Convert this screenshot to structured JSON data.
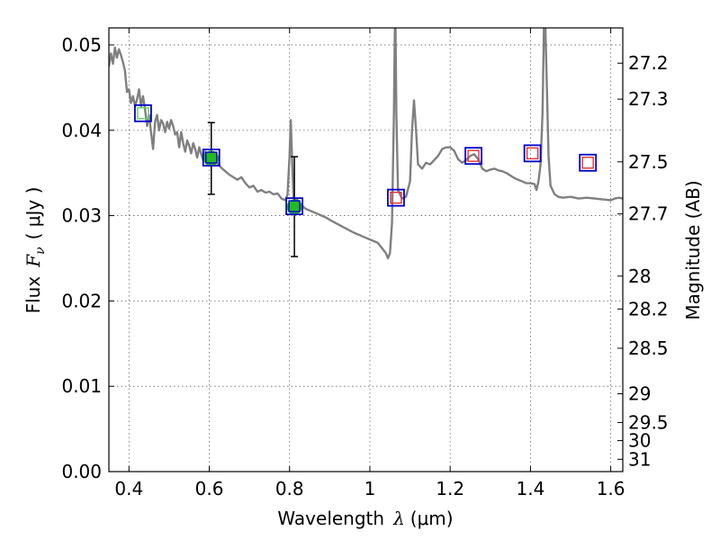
{
  "chart_data": {
    "type": "line",
    "xlabel_text": "Wavelength",
    "xlabel_symbol": "λ",
    "xlabel_unit": "(μm)",
    "ylabel_text": "Flux",
    "ylabel_symbol": "F",
    "ylabel_sub": "ν",
    "ylabel_unit": "( μJy )",
    "y2label": "Magnitude (AB)",
    "xlim": [
      0.35,
      1.63
    ],
    "ylim": [
      0.0,
      0.052
    ],
    "grid": true,
    "x_ticks": [
      {
        "value": 0.4,
        "label": "0.4"
      },
      {
        "value": 0.6,
        "label": "0.6"
      },
      {
        "value": 0.8,
        "label": "0.8"
      },
      {
        "value": 1.0,
        "label": "1"
      },
      {
        "value": 1.2,
        "label": "1.2"
      },
      {
        "value": 1.4,
        "label": "1.4"
      },
      {
        "value": 1.6,
        "label": "1.6"
      }
    ],
    "y_ticks": [
      {
        "value": 0.0,
        "label": "0.00"
      },
      {
        "value": 0.01,
        "label": "0.01"
      },
      {
        "value": 0.02,
        "label": "0.02"
      },
      {
        "value": 0.03,
        "label": "0.03"
      },
      {
        "value": 0.04,
        "label": "0.04"
      },
      {
        "value": 0.05,
        "label": "0.05"
      }
    ],
    "mag_ticks": [
      {
        "value": 27.2,
        "label": "27.2"
      },
      {
        "value": 27.3,
        "label": "27.3"
      },
      {
        "value": 27.5,
        "label": "27.5"
      },
      {
        "value": 27.7,
        "label": "27.7"
      },
      {
        "value": 28.0,
        "label": "28"
      },
      {
        "value": 28.2,
        "label": "28.2"
      },
      {
        "value": 28.5,
        "label": "28.5"
      },
      {
        "value": 29.0,
        "label": "29"
      },
      {
        "value": 29.5,
        "label": "29.5"
      },
      {
        "value": 30.0,
        "label": "30"
      },
      {
        "value": 31.0,
        "label": "31"
      }
    ],
    "series": [
      {
        "type": "line",
        "color": "#808080",
        "points": [
          [
            0.35,
            0.0475
          ],
          [
            0.355,
            0.049
          ],
          [
            0.36,
            0.0478
          ],
          [
            0.365,
            0.0497
          ],
          [
            0.37,
            0.0485
          ],
          [
            0.375,
            0.0495
          ],
          [
            0.38,
            0.0488
          ],
          [
            0.385,
            0.048
          ],
          [
            0.39,
            0.047
          ],
          [
            0.395,
            0.0445
          ],
          [
            0.4,
            0.0448
          ],
          [
            0.405,
            0.0432
          ],
          [
            0.41,
            0.044
          ],
          [
            0.415,
            0.0428
          ],
          [
            0.42,
            0.0436
          ],
          [
            0.425,
            0.0448
          ],
          [
            0.43,
            0.0428
          ],
          [
            0.435,
            0.044
          ],
          [
            0.44,
            0.0425
          ],
          [
            0.445,
            0.0405
          ],
          [
            0.45,
            0.0418
          ],
          [
            0.455,
            0.0398
          ],
          [
            0.46,
            0.0378
          ],
          [
            0.465,
            0.041
          ],
          [
            0.47,
            0.0418
          ],
          [
            0.475,
            0.04
          ],
          [
            0.48,
            0.0412
          ],
          [
            0.485,
            0.0408
          ],
          [
            0.49,
            0.0398
          ],
          [
            0.495,
            0.041
          ],
          [
            0.5,
            0.0402
          ],
          [
            0.505,
            0.0412
          ],
          [
            0.51,
            0.0405
          ],
          [
            0.515,
            0.0395
          ],
          [
            0.52,
            0.0398
          ],
          [
            0.525,
            0.038
          ],
          [
            0.53,
            0.0398
          ],
          [
            0.535,
            0.0385
          ],
          [
            0.54,
            0.0375
          ],
          [
            0.545,
            0.0388
          ],
          [
            0.55,
            0.0382
          ],
          [
            0.555,
            0.0373
          ],
          [
            0.56,
            0.0385
          ],
          [
            0.565,
            0.0378
          ],
          [
            0.57,
            0.0368
          ],
          [
            0.575,
            0.038
          ],
          [
            0.58,
            0.0372
          ],
          [
            0.585,
            0.0365
          ],
          [
            0.59,
            0.0375
          ],
          [
            0.595,
            0.0368
          ],
          [
            0.6,
            0.0364
          ],
          [
            0.61,
            0.0368
          ],
          [
            0.62,
            0.0362
          ],
          [
            0.63,
            0.0356
          ],
          [
            0.64,
            0.0352
          ],
          [
            0.65,
            0.0348
          ],
          [
            0.66,
            0.0345
          ],
          [
            0.67,
            0.0342
          ],
          [
            0.68,
            0.0345
          ],
          [
            0.69,
            0.0338
          ],
          [
            0.7,
            0.0333
          ],
          [
            0.71,
            0.0335
          ],
          [
            0.72,
            0.0328
          ],
          [
            0.73,
            0.033
          ],
          [
            0.74,
            0.0327
          ],
          [
            0.75,
            0.0328
          ],
          [
            0.76,
            0.0325
          ],
          [
            0.77,
            0.0326
          ],
          [
            0.78,
            0.032
          ],
          [
            0.79,
            0.0318
          ],
          [
            0.795,
            0.0325
          ],
          [
            0.8,
            0.037
          ],
          [
            0.803,
            0.0412
          ],
          [
            0.806,
            0.037
          ],
          [
            0.81,
            0.032
          ],
          [
            0.82,
            0.0318
          ],
          [
            0.83,
            0.0312
          ],
          [
            0.84,
            0.0308
          ],
          [
            0.85,
            0.0306
          ],
          [
            0.86,
            0.0304
          ],
          [
            0.87,
            0.0302
          ],
          [
            0.88,
            0.03
          ],
          [
            0.89,
            0.0298
          ],
          [
            0.9,
            0.0295
          ],
          [
            0.92,
            0.029
          ],
          [
            0.94,
            0.0285
          ],
          [
            0.96,
            0.028
          ],
          [
            0.98,
            0.0276
          ],
          [
            1.0,
            0.0272
          ],
          [
            1.02,
            0.0268
          ],
          [
            1.03,
            0.0262
          ],
          [
            1.04,
            0.0256
          ],
          [
            1.045,
            0.025
          ],
          [
            1.05,
            0.0256
          ],
          [
            1.055,
            0.029
          ],
          [
            1.06,
            0.042
          ],
          [
            1.063,
            0.056
          ],
          [
            1.066,
            0.042
          ],
          [
            1.07,
            0.033
          ],
          [
            1.08,
            0.032
          ],
          [
            1.09,
            0.0322
          ],
          [
            1.1,
            0.034
          ],
          [
            1.105,
            0.04
          ],
          [
            1.11,
            0.0435
          ],
          [
            1.115,
            0.04
          ],
          [
            1.12,
            0.036
          ],
          [
            1.13,
            0.0355
          ],
          [
            1.14,
            0.0362
          ],
          [
            1.15,
            0.036
          ],
          [
            1.16,
            0.0365
          ],
          [
            1.17,
            0.037
          ],
          [
            1.18,
            0.0378
          ],
          [
            1.19,
            0.038
          ],
          [
            1.2,
            0.038
          ],
          [
            1.21,
            0.0376
          ],
          [
            1.22,
            0.0366
          ],
          [
            1.23,
            0.0362
          ],
          [
            1.24,
            0.0365
          ],
          [
            1.25,
            0.037
          ],
          [
            1.26,
            0.0372
          ],
          [
            1.27,
            0.0366
          ],
          [
            1.28,
            0.0355
          ],
          [
            1.29,
            0.0352
          ],
          [
            1.3,
            0.0354
          ],
          [
            1.31,
            0.0355
          ],
          [
            1.32,
            0.0353
          ],
          [
            1.33,
            0.0352
          ],
          [
            1.34,
            0.035
          ],
          [
            1.35,
            0.0347
          ],
          [
            1.36,
            0.0344
          ],
          [
            1.37,
            0.0342
          ],
          [
            1.38,
            0.034
          ],
          [
            1.39,
            0.0338
          ],
          [
            1.4,
            0.0338
          ],
          [
            1.41,
            0.0337
          ],
          [
            1.415,
            0.033
          ],
          [
            1.42,
            0.034
          ],
          [
            1.425,
            0.036
          ],
          [
            1.43,
            0.042
          ],
          [
            1.435,
            0.056
          ],
          [
            1.44,
            0.047
          ],
          [
            1.445,
            0.037
          ],
          [
            1.45,
            0.0335
          ],
          [
            1.46,
            0.0325
          ],
          [
            1.47,
            0.0322
          ],
          [
            1.48,
            0.0321
          ],
          [
            1.5,
            0.0322
          ],
          [
            1.52,
            0.032
          ],
          [
            1.54,
            0.0321
          ],
          [
            1.56,
            0.032
          ],
          [
            1.58,
            0.0319
          ],
          [
            1.6,
            0.0318
          ],
          [
            1.61,
            0.032
          ],
          [
            1.62,
            0.0321
          ],
          [
            1.63,
            0.032
          ]
        ]
      }
    ],
    "green_points": [
      {
        "x": 0.605,
        "y": 0.0367,
        "err_low": 0.0325,
        "err_high": 0.0409
      },
      {
        "x": 0.812,
        "y": 0.031,
        "err_low": 0.0252,
        "err_high": 0.0369
      }
    ],
    "model_squares": [
      {
        "x": 0.435,
        "y": 0.042,
        "inner": "green"
      },
      {
        "x": 0.605,
        "y": 0.0368,
        "inner": "blue"
      },
      {
        "x": 0.812,
        "y": 0.0311,
        "inner": "blue"
      },
      {
        "x": 1.065,
        "y": 0.0321,
        "inner": "red"
      },
      {
        "x": 1.258,
        "y": 0.037,
        "inner": "red"
      },
      {
        "x": 1.405,
        "y": 0.0373,
        "inner": "red"
      },
      {
        "x": 1.543,
        "y": 0.0362,
        "inner": "red"
      }
    ],
    "colors": {
      "spectrum": "#808080",
      "outer_square": "#0000cc",
      "inner_green": "#5fd35f",
      "inner_red": "#e03030",
      "inner_blue": "#0000cc",
      "point_fill": "#22bb22",
      "error_bar": "#000000"
    }
  }
}
